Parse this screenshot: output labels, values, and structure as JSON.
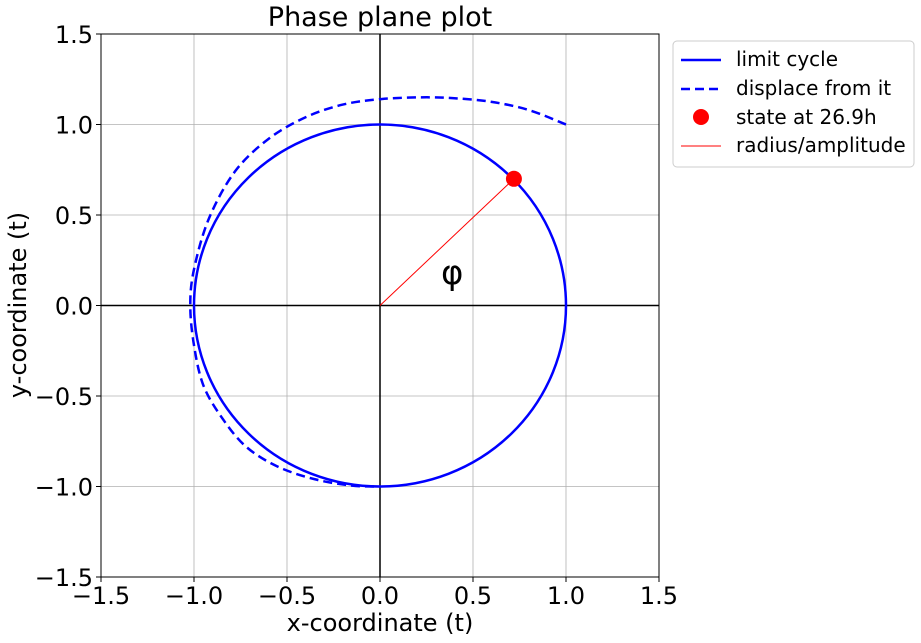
{
  "chart_data": {
    "type": "line",
    "title": "Phase plane plot",
    "xlabel": "x-coordinate (t)",
    "ylabel": "y-coordinate (t)",
    "xlim": [
      -1.5,
      1.5
    ],
    "ylim": [
      -1.5,
      1.5
    ],
    "xticks": [
      -1.5,
      -1.0,
      -0.5,
      0.0,
      0.5,
      1.0,
      1.5
    ],
    "yticks": [
      -1.5,
      -1.0,
      -0.5,
      0.0,
      0.5,
      1.0,
      1.5
    ],
    "xtick_labels": [
      "−1.5",
      "−1.0",
      "−0.5",
      "0.0",
      "0.5",
      "1.0",
      "1.5"
    ],
    "ytick_labels": [
      "−1.5",
      "−1.0",
      "−0.5",
      "0.0",
      "0.5",
      "1.0",
      "1.5"
    ],
    "grid": true,
    "legend_position": "outside-right-top",
    "annotation": "φ",
    "series": [
      {
        "name": "limit cycle",
        "style": "solid",
        "color": "#0000ff",
        "shape": "circle",
        "center": [
          0,
          0
        ],
        "radius": 1.0
      },
      {
        "name": "displace from it",
        "style": "dashed",
        "color": "#0000ff",
        "x": [
          1.0,
          0.8,
          0.6,
          0.4,
          0.22,
          0.0,
          -0.2,
          -0.4,
          -0.6,
          -0.78,
          -0.92,
          -1.0,
          -1.02,
          -1.0,
          -0.95,
          -0.85,
          -0.72,
          -0.55,
          -0.35,
          -0.15,
          0.0
        ],
        "y": [
          1.0,
          1.08,
          1.125,
          1.145,
          1.15,
          1.14,
          1.11,
          1.04,
          0.92,
          0.74,
          0.48,
          0.2,
          0.0,
          -0.22,
          -0.44,
          -0.62,
          -0.78,
          -0.89,
          -0.96,
          -0.995,
          -1.0
        ]
      },
      {
        "name": "state at 26.9h",
        "style": "marker",
        "color": "#ff0000",
        "x": [
          0.72
        ],
        "y": [
          0.7
        ]
      },
      {
        "name": "radius/amplitude",
        "style": "thin-line",
        "color": "#ff0000",
        "x": [
          0.0,
          0.72
        ],
        "y": [
          0.0,
          0.7
        ]
      }
    ]
  }
}
